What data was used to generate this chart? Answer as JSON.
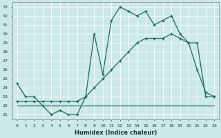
{
  "xlabel": "Humidex (Indice chaleur)",
  "background_color": "#cce8e8",
  "line_color": "#1a6b5a",
  "xlim": [
    -0.5,
    23.5
  ],
  "ylim": [
    20.5,
    33.5
  ],
  "xticks": [
    0,
    1,
    2,
    3,
    4,
    5,
    6,
    7,
    8,
    9,
    10,
    11,
    12,
    13,
    14,
    15,
    16,
    17,
    18,
    19,
    20,
    21,
    22,
    23
  ],
  "yticks": [
    21,
    22,
    23,
    24,
    25,
    26,
    27,
    28,
    29,
    30,
    31,
    32,
    33
  ],
  "series1_x": [
    0,
    1,
    2,
    3,
    4,
    5,
    6,
    7,
    8,
    9,
    10,
    11,
    12,
    13,
    14,
    15,
    16,
    17,
    18,
    19,
    20,
    21,
    22,
    23
  ],
  "series1_y": [
    24.5,
    23.0,
    23.0,
    22.0,
    21.0,
    21.5,
    21.0,
    21.0,
    23.0,
    30.0,
    25.5,
    31.5,
    33.0,
    32.5,
    32.0,
    32.5,
    31.0,
    31.5,
    32.0,
    30.0,
    29.0,
    26.0,
    23.5,
    23.0
  ],
  "series2_x": [
    0,
    1,
    2,
    3,
    4,
    5,
    6,
    7,
    8,
    9,
    10,
    11,
    12,
    13,
    14,
    15,
    16,
    17,
    18,
    19,
    20,
    21,
    22,
    23
  ],
  "series2_y": [
    22.5,
    22.5,
    22.5,
    22.5,
    22.5,
    22.5,
    22.5,
    22.5,
    23.0,
    24.0,
    25.0,
    26.0,
    27.0,
    28.0,
    29.0,
    29.5,
    29.5,
    29.5,
    30.0,
    29.5,
    29.0,
    29.0,
    23.0,
    23.0
  ],
  "series3_x": [
    0,
    3,
    4,
    5,
    6,
    7,
    8,
    9,
    10,
    11,
    12,
    13,
    14,
    15,
    16,
    17,
    18,
    19,
    20,
    21,
    22,
    23
  ],
  "series3_y": [
    22.0,
    22.0,
    22.0,
    22.0,
    22.0,
    22.0,
    22.0,
    22.0,
    22.0,
    22.0,
    22.0,
    22.0,
    22.0,
    22.0,
    22.0,
    22.0,
    22.0,
    22.0,
    22.0,
    22.0,
    22.0,
    22.0
  ]
}
